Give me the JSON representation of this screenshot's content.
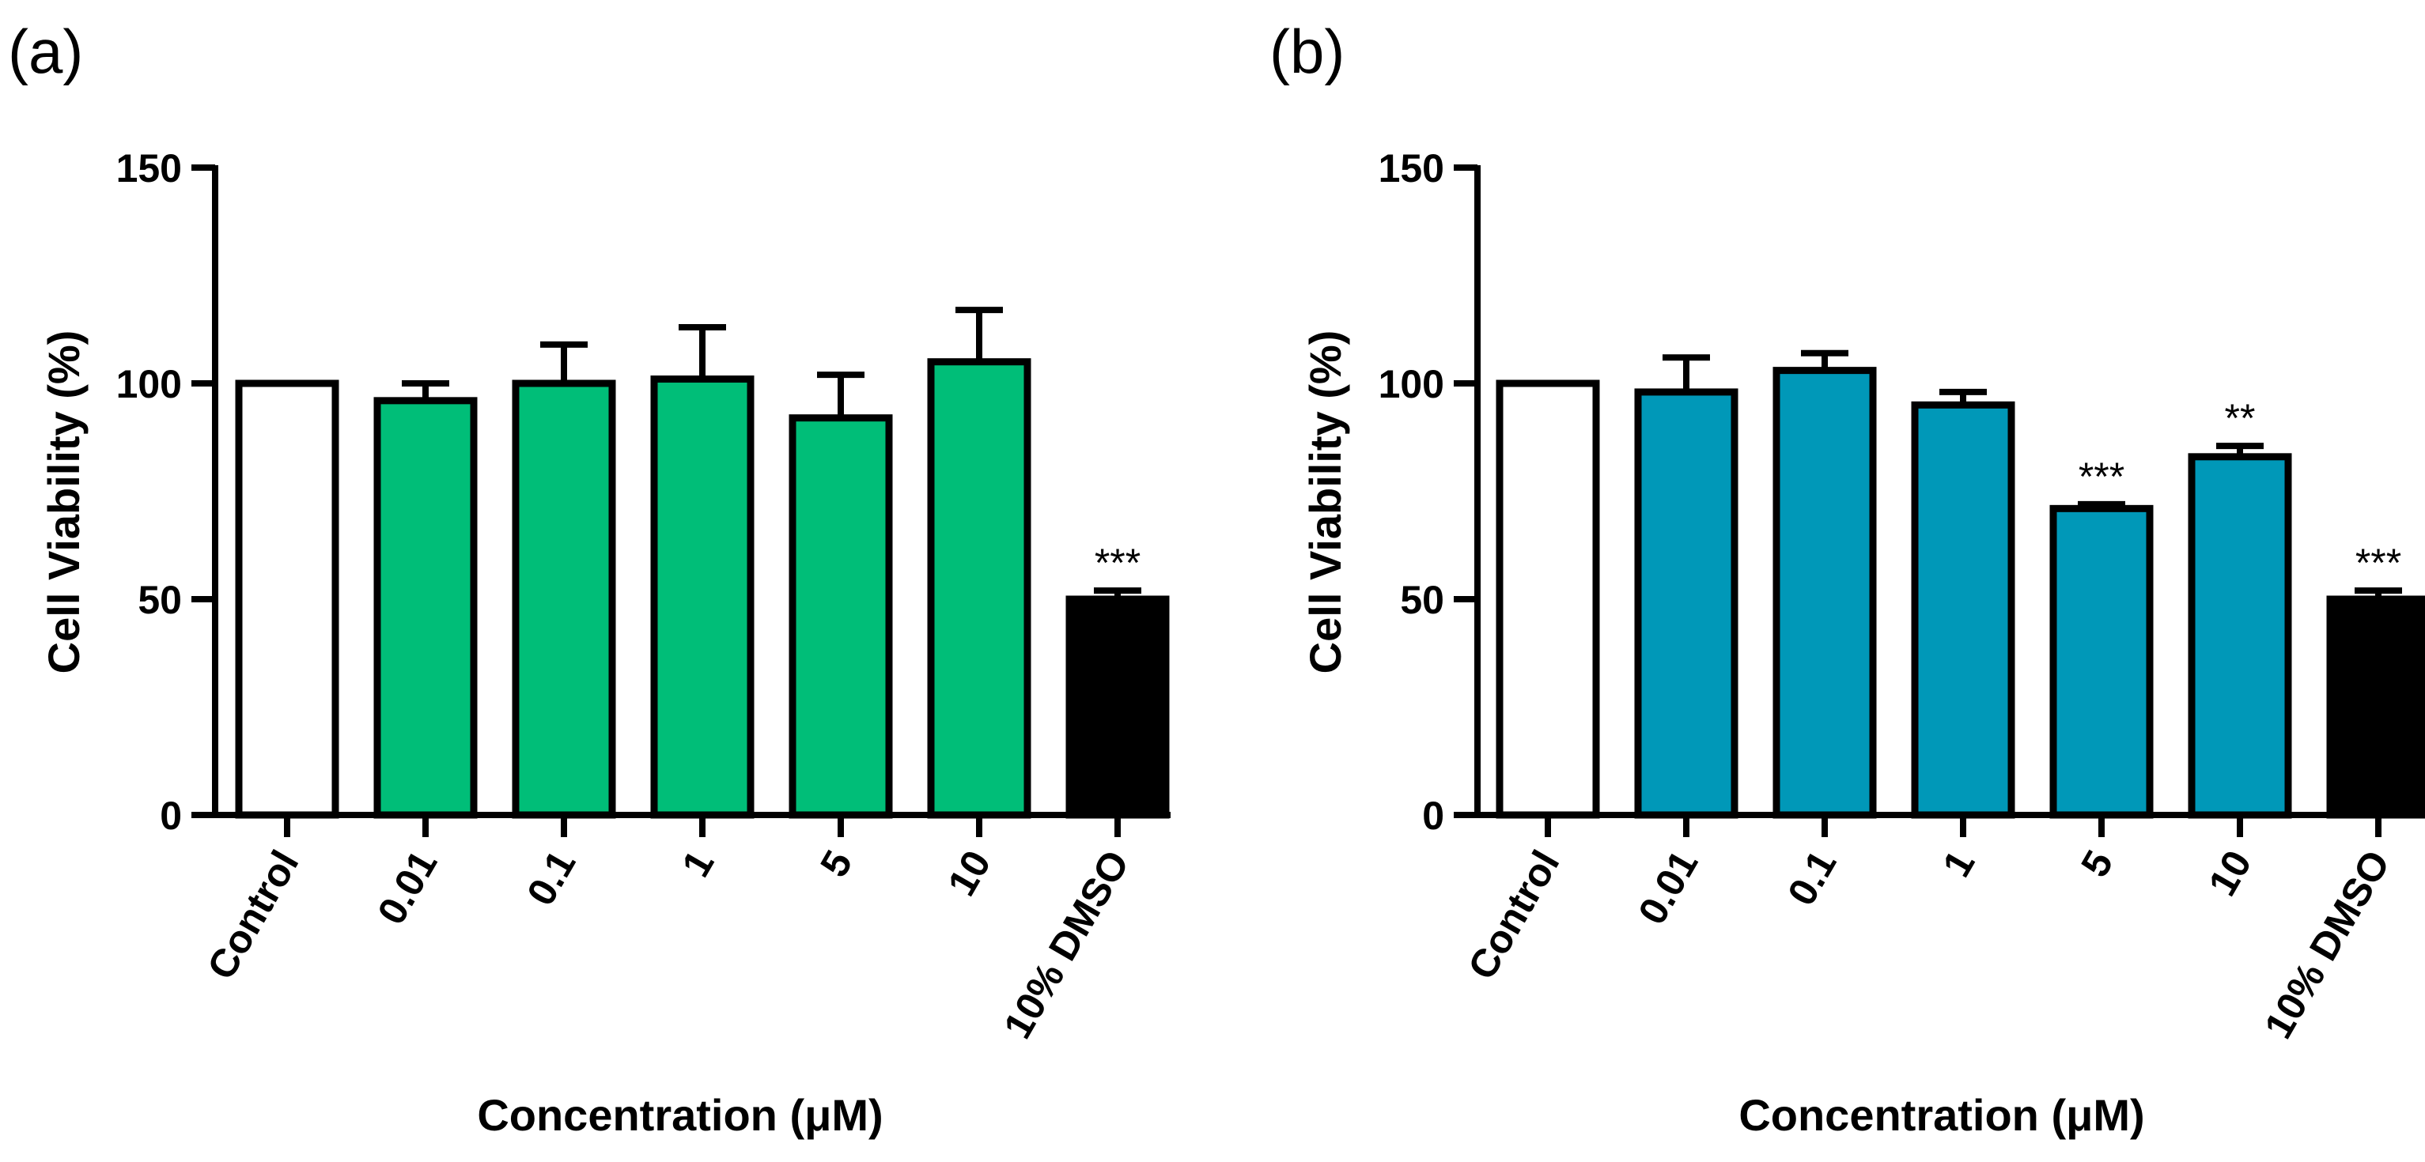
{
  "figure": {
    "panels": [
      "(a)",
      "(b)"
    ]
  },
  "chart_data": [
    {
      "type": "bar",
      "panel": "(a)",
      "xlabel": "Concentration (μM)",
      "ylabel": "Cell Viability (%)",
      "ylim": [
        0,
        150
      ],
      "yticks": [
        0,
        50,
        100,
        150
      ],
      "categories": [
        "Control",
        "0.01",
        "0.1",
        "1",
        "5",
        "10",
        "10% DMSO"
      ],
      "values": [
        100,
        96,
        100,
        101,
        92,
        105,
        50
      ],
      "errors": [
        0,
        4,
        9,
        12,
        10,
        12,
        2
      ],
      "significance": [
        "",
        "",
        "",
        "",
        "",
        "",
        "***"
      ],
      "colors": [
        "#ffffff",
        "#00be78",
        "#00be78",
        "#00be78",
        "#00be78",
        "#00be78",
        "#000000"
      ]
    },
    {
      "type": "bar",
      "panel": "(b)",
      "xlabel": "Concentration (μM)",
      "ylabel": "Cell Viability (%)",
      "ylim": [
        0,
        150
      ],
      "yticks": [
        0,
        50,
        100,
        150
      ],
      "categories": [
        "Control",
        "0.01",
        "0.1",
        "1",
        "5",
        "10",
        "10% DMSO"
      ],
      "values": [
        100,
        98,
        103,
        95,
        71,
        83,
        50
      ],
      "errors": [
        0,
        8,
        4,
        3,
        1,
        2.5,
        2
      ],
      "significance": [
        "",
        "",
        "",
        "",
        "***",
        "**",
        "***"
      ],
      "colors": [
        "#ffffff",
        "#0098b8",
        "#0098b8",
        "#0098b8",
        "#0098b8",
        "#0098b8",
        "#000000"
      ]
    }
  ]
}
